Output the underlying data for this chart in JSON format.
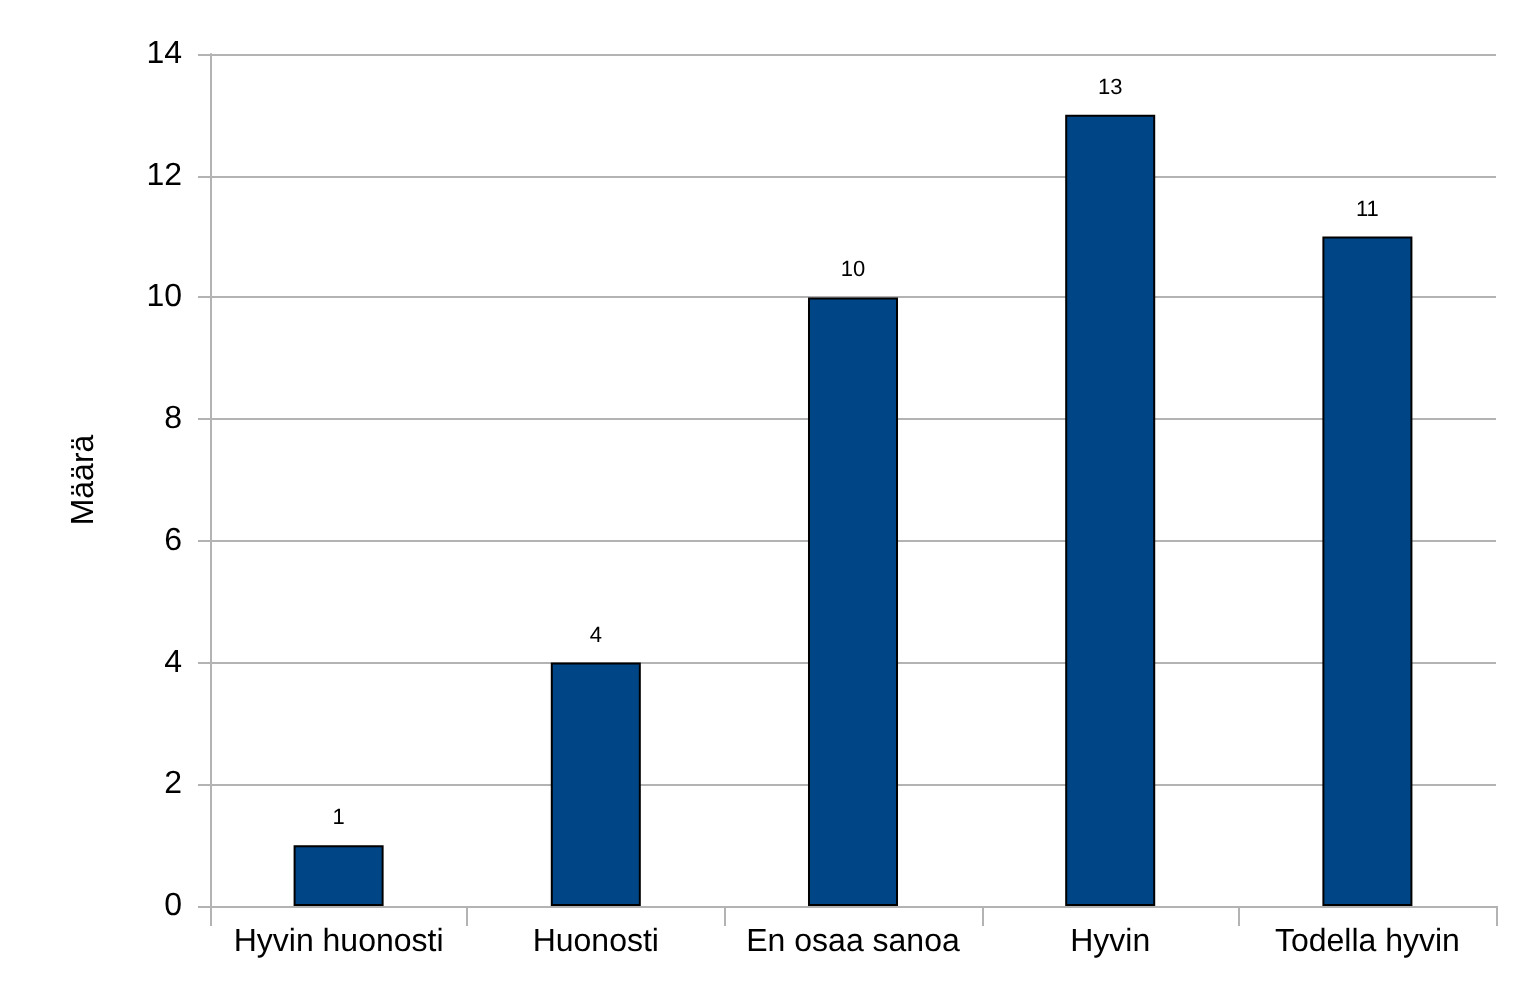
{
  "chart_data": {
    "type": "bar",
    "ylabel": "Määrä",
    "categories": [
      "Hyvin huonosti",
      "Huonosti",
      "En osaa sanoa",
      "Hyvin",
      "Todella hyvin"
    ],
    "values": [
      1,
      4,
      10,
      13,
      11
    ],
    "color": "#004586",
    "ylim": [
      0,
      14
    ],
    "yticks": [
      0,
      2,
      4,
      6,
      8,
      10,
      12,
      14
    ],
    "grid": "y",
    "data_labels": true
  }
}
